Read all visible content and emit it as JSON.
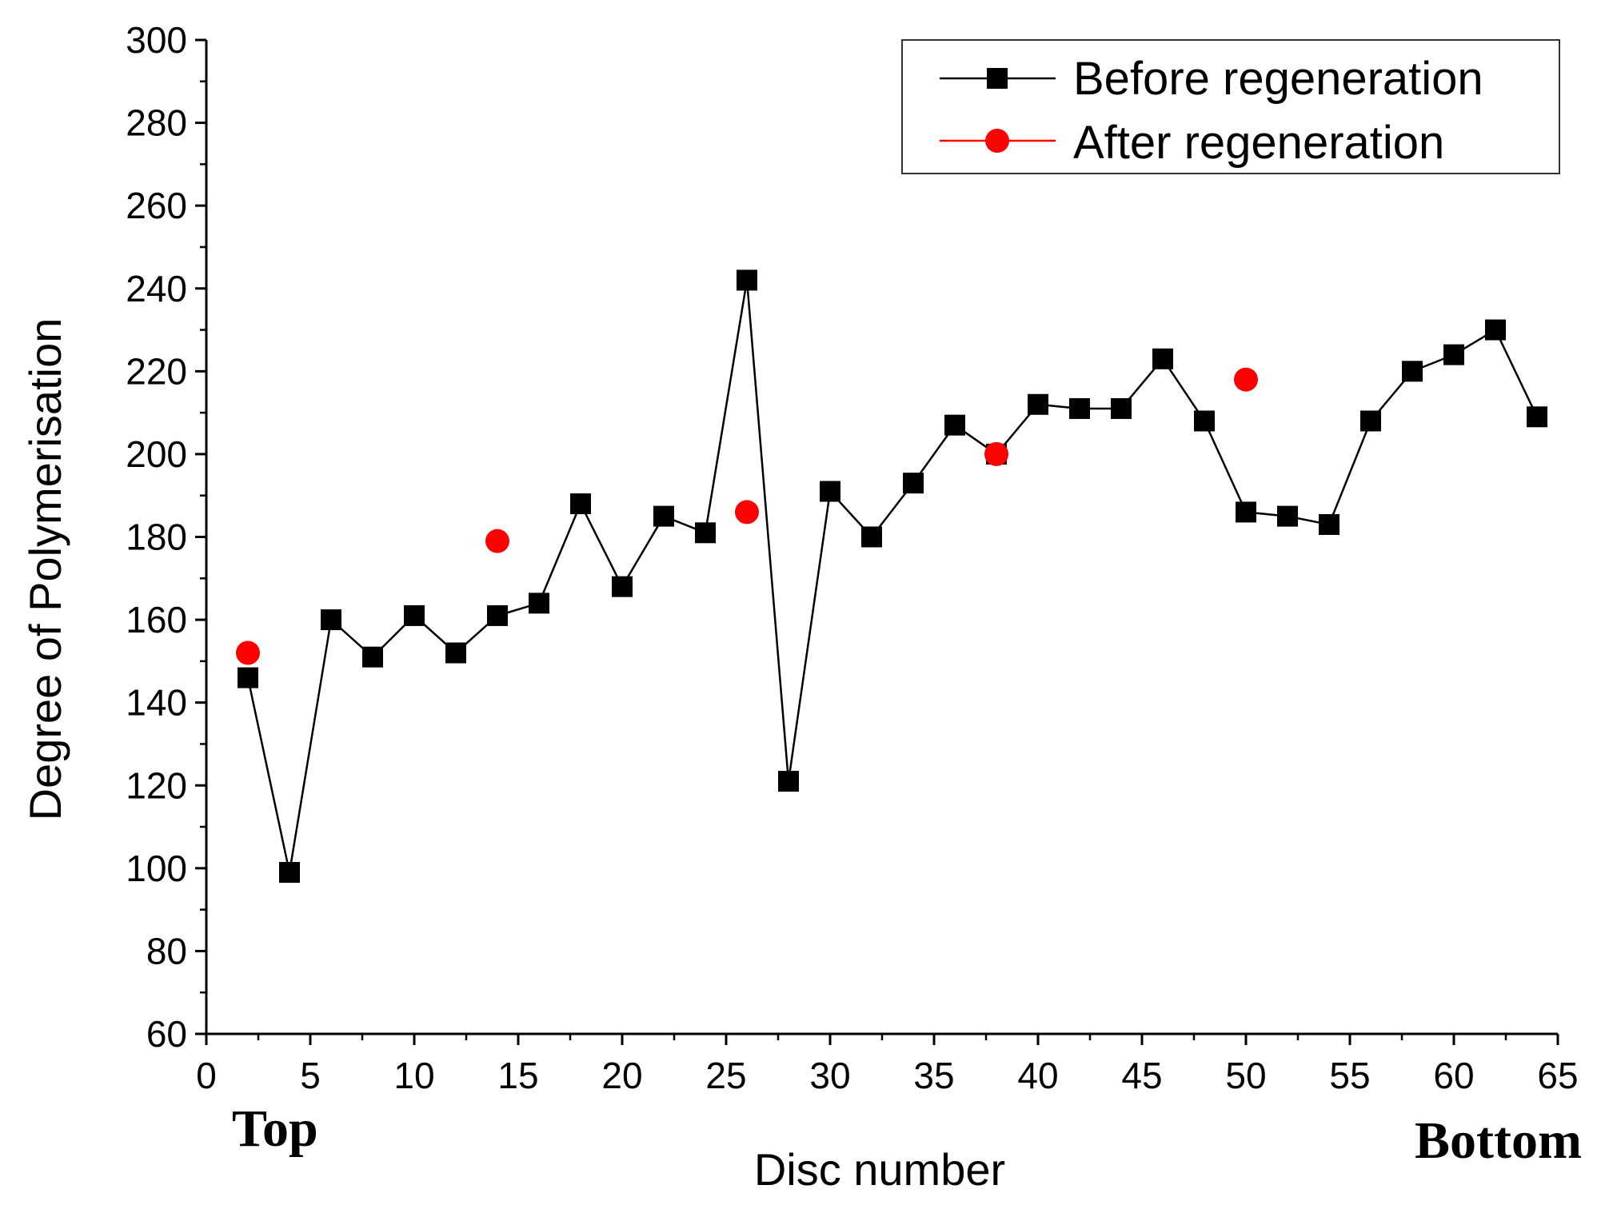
{
  "chart_data": {
    "type": "scatter",
    "title": "",
    "xlabel": "Disc number",
    "ylabel": "Degree of Polymerisation",
    "xlim": [
      0,
      65
    ],
    "ylim": [
      60,
      300
    ],
    "x_ticks": [
      0,
      5,
      10,
      15,
      20,
      25,
      30,
      35,
      40,
      45,
      50,
      55,
      60,
      65
    ],
    "y_ticks": [
      60,
      80,
      100,
      120,
      140,
      160,
      180,
      200,
      220,
      240,
      260,
      280,
      300
    ],
    "grid": false,
    "legend_position": "top-right",
    "annotations": {
      "left": "Top",
      "right": "Bottom"
    },
    "colors": {
      "before": "#000000",
      "after": "#ff0000"
    },
    "series": [
      {
        "name": "Before regeneration",
        "marker": "square",
        "line": true,
        "x": [
          2,
          4,
          6,
          8,
          10,
          12,
          14,
          16,
          18,
          20,
          22,
          24,
          26,
          28,
          30,
          32,
          34,
          36,
          38,
          40,
          42,
          44,
          46,
          48,
          50,
          52,
          54,
          56,
          58,
          60,
          62,
          64
        ],
        "y": [
          146,
          99,
          160,
          151,
          161,
          152,
          161,
          164,
          188,
          168,
          185,
          181,
          242,
          121,
          191,
          180,
          193,
          207,
          200,
          212,
          211,
          211,
          223,
          208,
          186,
          185,
          183,
          208,
          220,
          224,
          230,
          209
        ]
      },
      {
        "name": "After regeneration",
        "marker": "circle",
        "line": false,
        "x": [
          2,
          14,
          26,
          38,
          50
        ],
        "y": [
          152,
          179,
          186,
          200,
          218
        ]
      }
    ]
  }
}
